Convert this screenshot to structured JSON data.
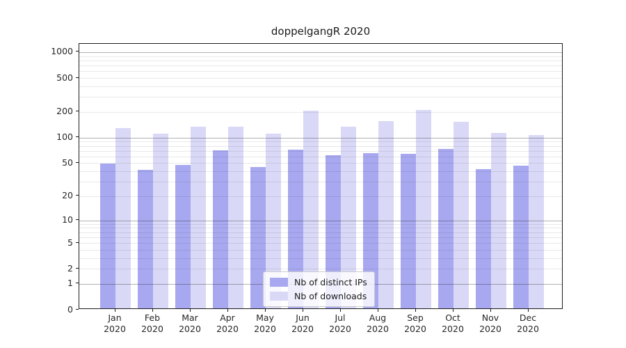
{
  "title": "doppelgangR 2020",
  "legend": {
    "items": [
      {
        "label": "Nb of distinct IPs",
        "color": "#a8a8f0"
      },
      {
        "label": "Nb of downloads",
        "color": "#d9d9f7"
      }
    ]
  },
  "chart_data": {
    "type": "bar",
    "title": "doppelgangR 2020",
    "categories": [
      "Jan",
      "Feb",
      "Mar",
      "Apr",
      "May",
      "Jun",
      "Jul",
      "Aug",
      "Sep",
      "Oct",
      "Nov",
      "Dec"
    ],
    "category_year": "2020",
    "series": [
      {
        "name": "Nb of distinct IPs",
        "color": "#a8a8f0",
        "values": [
          48,
          40,
          46,
          68,
          43,
          69,
          60,
          63,
          62,
          71,
          41,
          45
        ]
      },
      {
        "name": "Nb of downloads",
        "color": "#d9d9f7",
        "values": [
          124,
          107,
          131,
          129,
          108,
          200,
          129,
          152,
          202,
          147,
          110,
          103
        ]
      }
    ],
    "xlabel": "",
    "ylabel": "",
    "y_ticks": [
      0,
      1,
      2,
      5,
      10,
      20,
      50,
      100,
      200,
      500,
      1000
    ],
    "y_scale": "log10(value+1)",
    "ylim": [
      0,
      1250
    ],
    "grid": {
      "major": [
        1,
        10,
        100,
        1000
      ],
      "minor": [
        2,
        3,
        4,
        5,
        6,
        7,
        8,
        9,
        20,
        30,
        40,
        50,
        60,
        70,
        80,
        90,
        200,
        300,
        400,
        500,
        600,
        700,
        800,
        900
      ]
    },
    "legend_position": "inside-bottom-center",
    "colors": {
      "axis": "#1a1a1a",
      "text": "#262626",
      "grid_major": "#b3b3b3",
      "grid_minor": "#ebebeb"
    }
  }
}
